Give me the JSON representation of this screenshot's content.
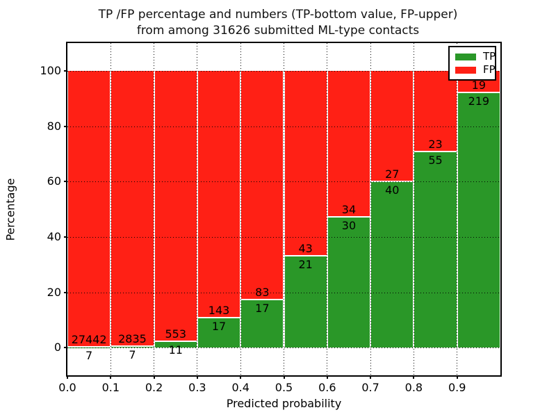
{
  "title_line1": "TP /FP percentage and numbers (TP-bottom value, FP-upper)",
  "title_line2": "from among 31626 submitted ML-type contacts",
  "chart_data": {
    "type": "bar",
    "stacked": true,
    "normalized": "each bin scaled to 100%, labels show raw counts",
    "title": "TP /FP percentage and numbers (TP-bottom value, FP-upper) from among 31626 submitted ML-type contacts",
    "xlabel": "Predicted probability",
    "ylabel": "Percentage",
    "categories": [
      "0.0",
      "0.1",
      "0.2",
      "0.3",
      "0.4",
      "0.5",
      "0.6",
      "0.7",
      "0.8",
      "0.9"
    ],
    "bin_width": 0.1,
    "series": [
      {
        "name": "TP",
        "color": "#2a9728",
        "counts": [
          7,
          7,
          11,
          17,
          17,
          21,
          30,
          40,
          55,
          219
        ]
      },
      {
        "name": "FP",
        "color": "#ff2015",
        "counts": [
          27442,
          2835,
          553,
          143,
          83,
          43,
          34,
          27,
          23,
          19
        ]
      }
    ],
    "tp_percent": [
      0.0255,
      0.2463,
      1.9504,
      10.625,
      17.0,
      32.8125,
      46.875,
      59.7015,
      70.5128,
      92.0168
    ],
    "xlim": [
      0.0,
      1.0
    ],
    "ylim": [
      -10,
      110
    ],
    "yticks": [
      0,
      20,
      40,
      60,
      80,
      100
    ],
    "grid": true,
    "grid_style": "dotted",
    "legend": {
      "position": "upper right",
      "entries": [
        {
          "label": "TP",
          "color": "#2a9728"
        },
        {
          "label": "FP",
          "color": "#ff2015"
        }
      ]
    }
  }
}
